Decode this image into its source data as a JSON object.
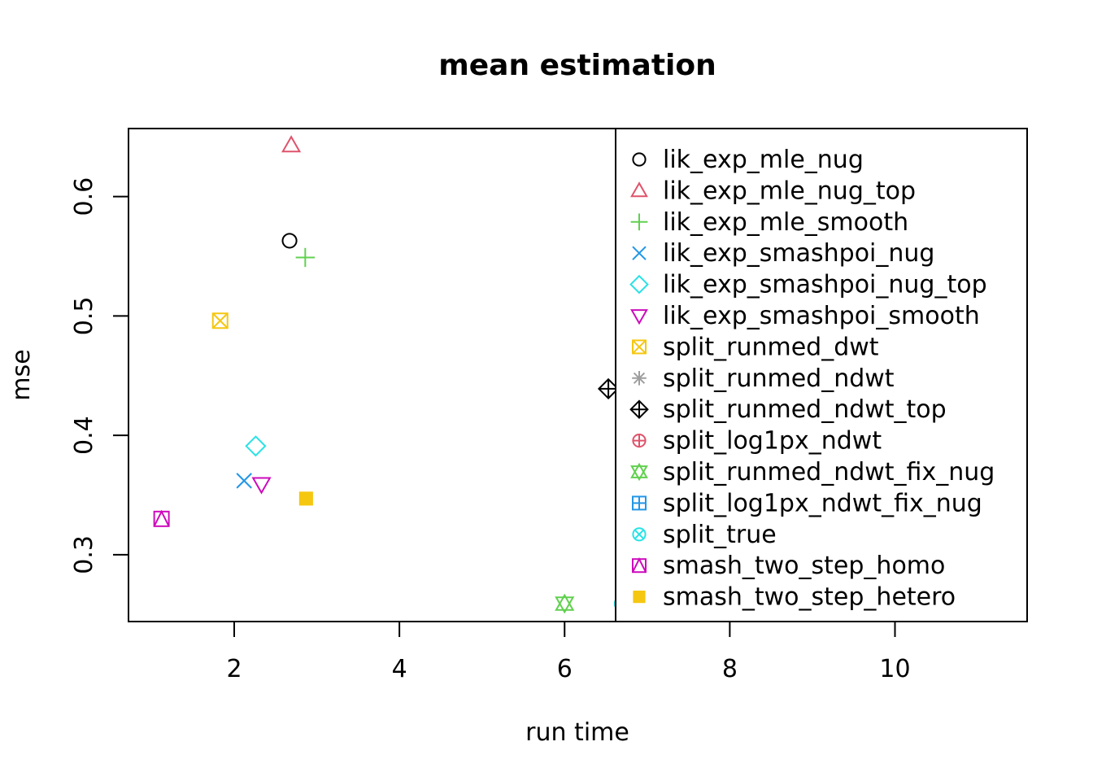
{
  "chart_data": {
    "type": "scatter",
    "title": "mean estimation",
    "xlabel": "run time",
    "ylabel": "mse",
    "xlim": [
      0.72,
      11.6
    ],
    "ylim": [
      0.244,
      0.657
    ],
    "x_ticks": [
      2,
      4,
      6,
      8,
      10
    ],
    "x_tick_labels": [
      "2",
      "4",
      "6",
      "8",
      "10"
    ],
    "y_ticks": [
      0.3,
      0.4,
      0.5,
      0.6
    ],
    "y_tick_labels": [
      "0.3",
      "0.4",
      "0.5",
      "0.6"
    ],
    "grid": false,
    "legend_position": "right",
    "series": [
      {
        "name": "lik_exp_mle_nug",
        "x": 2.67,
        "y": 0.563,
        "pch": 1,
        "color": "#000000"
      },
      {
        "name": "lik_exp_mle_nug_top",
        "x": 2.69,
        "y": 0.643,
        "pch": 2,
        "color": "#DF536B"
      },
      {
        "name": "lik_exp_mle_smooth",
        "x": 2.86,
        "y": 0.549,
        "pch": 3,
        "color": "#61D04F"
      },
      {
        "name": "lik_exp_smashpoi_nug",
        "x": 2.12,
        "y": 0.362,
        "pch": 4,
        "color": "#2297E6"
      },
      {
        "name": "lik_exp_smashpoi_nug_top",
        "x": 2.26,
        "y": 0.391,
        "pch": 5,
        "color": "#28E2E5"
      },
      {
        "name": "lik_exp_smashpoi_smooth",
        "x": 2.33,
        "y": 0.359,
        "pch": 6,
        "color": "#CD0BBC"
      },
      {
        "name": "split_runmed_dwt",
        "x": 1.83,
        "y": 0.496,
        "pch": 7,
        "color": "#F5C710"
      },
      {
        "name": "split_runmed_ndwt",
        "x": null,
        "y": null,
        "pch": 8,
        "color": "#9E9E9E"
      },
      {
        "name": "split_runmed_ndwt_top",
        "x": 6.53,
        "y": 0.439,
        "pch": 9,
        "color": "#000000"
      },
      {
        "name": "split_log1px_ndwt",
        "x": null,
        "y": null,
        "pch": 10,
        "color": "#DF536B"
      },
      {
        "name": "split_runmed_ndwt_fix_nug",
        "x": 6.0,
        "y": 0.259,
        "pch": 11,
        "color": "#61D04F"
      },
      {
        "name": "split_log1px_ndwt_fix_nug",
        "x": null,
        "y": null,
        "pch": 12,
        "color": "#2297E6"
      },
      {
        "name": "split_true",
        "x": 6.69,
        "y": 0.259,
        "pch": 13,
        "color": "#28E2E5"
      },
      {
        "name": "smash_two_step_homo",
        "x": 1.12,
        "y": 0.33,
        "pch": 14,
        "color": "#CD0BBC"
      },
      {
        "name": "smash_two_step_hetero",
        "x": 2.87,
        "y": 0.347,
        "pch": 15,
        "color": "#F5C710"
      }
    ]
  }
}
